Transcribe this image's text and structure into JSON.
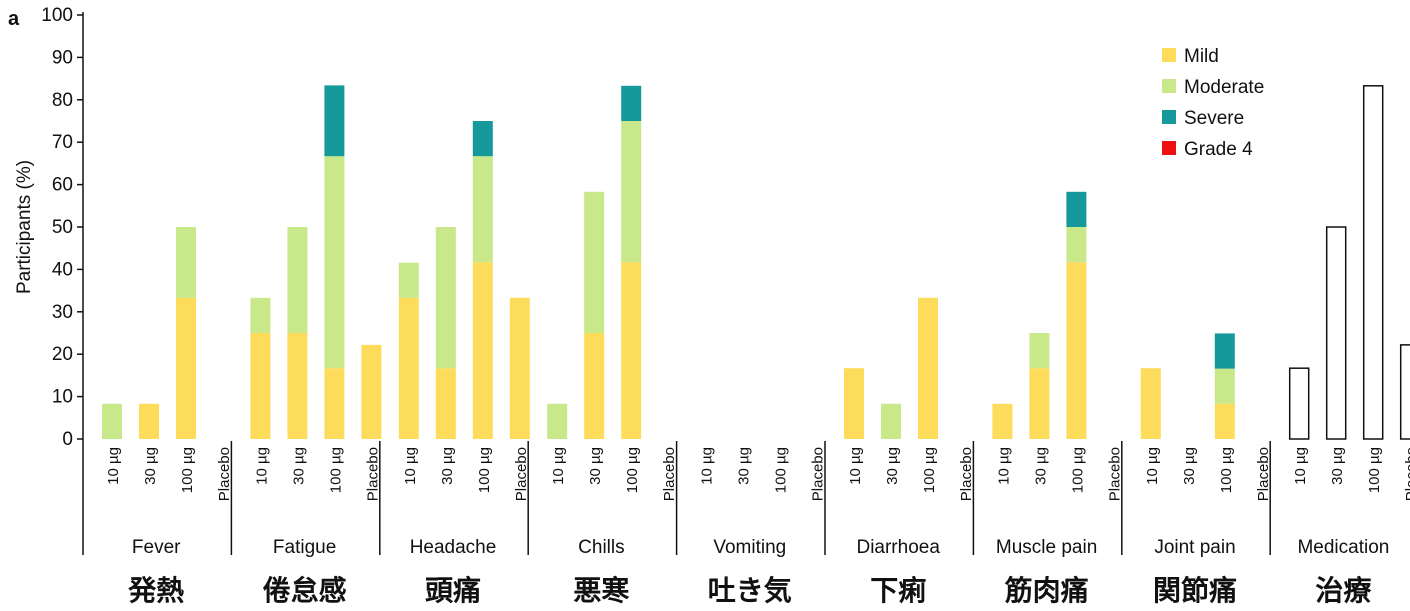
{
  "panel_label": "a",
  "chart_data": {
    "type": "bar",
    "stacked": true,
    "ylabel": "Participants (%)",
    "ylim": [
      0,
      100
    ],
    "yticks": [
      0,
      10,
      20,
      30,
      40,
      50,
      60,
      70,
      80,
      90,
      100
    ],
    "doses": [
      "10 µg",
      "30 µg",
      "100 µg",
      "Placebo"
    ],
    "colors": {
      "Mild": "#fddc5c",
      "Moderate": "#c9e88a",
      "Severe": "#15999a",
      "Grade 4": "#ee1111",
      "Medication": "#ffffff"
    },
    "legend": {
      "position": "top-right",
      "entries": [
        "Mild",
        "Moderate",
        "Severe",
        "Grade 4"
      ]
    },
    "groups": [
      {
        "name": "Fever",
        "jp": "発熱",
        "bars": [
          {
            "Mild": 0,
            "Moderate": 8.3,
            "Severe": 0
          },
          {
            "Mild": 8.3,
            "Moderate": 0,
            "Severe": 0
          },
          {
            "Mild": 33.3,
            "Moderate": 16.7,
            "Severe": 0
          },
          {
            "Mild": 0,
            "Moderate": 0,
            "Severe": 0
          }
        ]
      },
      {
        "name": "Fatigue",
        "jp": "倦怠感",
        "bars": [
          {
            "Mild": 25,
            "Moderate": 8.3,
            "Severe": 0
          },
          {
            "Mild": 25,
            "Moderate": 25,
            "Severe": 0
          },
          {
            "Mild": 16.7,
            "Moderate": 50,
            "Severe": 16.7
          },
          {
            "Mild": 22.2,
            "Moderate": 0,
            "Severe": 0
          }
        ]
      },
      {
        "name": "Headache",
        "jp": "頭痛",
        "bars": [
          {
            "Mild": 33.3,
            "Moderate": 8.3,
            "Severe": 0
          },
          {
            "Mild": 16.7,
            "Moderate": 33.3,
            "Severe": 0
          },
          {
            "Mild": 41.7,
            "Moderate": 25,
            "Severe": 8.3
          },
          {
            "Mild": 33.3,
            "Moderate": 0,
            "Severe": 0
          }
        ]
      },
      {
        "name": "Chills",
        "jp": "悪寒",
        "bars": [
          {
            "Mild": 0,
            "Moderate": 8.3,
            "Severe": 0
          },
          {
            "Mild": 25,
            "Moderate": 33.3,
            "Severe": 0
          },
          {
            "Mild": 41.7,
            "Moderate": 33.3,
            "Severe": 8.3
          },
          {
            "Mild": 0,
            "Moderate": 0,
            "Severe": 0
          }
        ]
      },
      {
        "name": "Vomiting",
        "jp": "吐き気",
        "bars": [
          {
            "Mild": 0,
            "Moderate": 0,
            "Severe": 0
          },
          {
            "Mild": 0,
            "Moderate": 0,
            "Severe": 0
          },
          {
            "Mild": 0,
            "Moderate": 0,
            "Severe": 0
          },
          {
            "Mild": 0,
            "Moderate": 0,
            "Severe": 0
          }
        ]
      },
      {
        "name": "Diarrhoea",
        "jp": "下痢",
        "bars": [
          {
            "Mild": 16.7,
            "Moderate": 0,
            "Severe": 0
          },
          {
            "Mild": 0,
            "Moderate": 8.3,
            "Severe": 0
          },
          {
            "Mild": 33.3,
            "Moderate": 0,
            "Severe": 0
          },
          {
            "Mild": 0,
            "Moderate": 0,
            "Severe": 0
          }
        ]
      },
      {
        "name": "Muscle pain",
        "jp": "筋肉痛",
        "bars": [
          {
            "Mild": 8.3,
            "Moderate": 0,
            "Severe": 0
          },
          {
            "Mild": 16.7,
            "Moderate": 8.3,
            "Severe": 0
          },
          {
            "Mild": 41.7,
            "Moderate": 8.3,
            "Severe": 8.3
          },
          {
            "Mild": 0,
            "Moderate": 0,
            "Severe": 0
          }
        ]
      },
      {
        "name": "Joint pain",
        "jp": "関節痛",
        "bars": [
          {
            "Mild": 16.7,
            "Moderate": 0,
            "Severe": 0
          },
          {
            "Mild": 0,
            "Moderate": 0,
            "Severe": 0
          },
          {
            "Mild": 8.3,
            "Moderate": 8.3,
            "Severe": 8.3
          },
          {
            "Mild": 0,
            "Moderate": 0,
            "Severe": 0
          }
        ]
      },
      {
        "name": "Medication",
        "jp": "治療",
        "outline": true,
        "bars": [
          {
            "value": 16.7
          },
          {
            "value": 50
          },
          {
            "value": 83.3
          },
          {
            "value": 22.2
          }
        ]
      }
    ]
  }
}
